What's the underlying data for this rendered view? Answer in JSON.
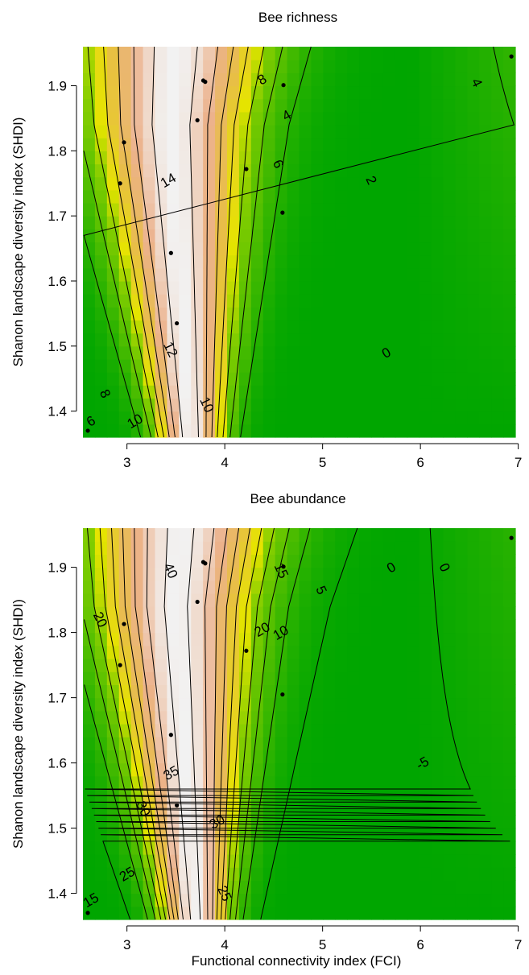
{
  "chart_data": [
    {
      "type": "heatmap",
      "title": "Bee richness",
      "xlabel": "",
      "ylabel": "Shanon landscape diversity index (SHDI)",
      "xlim": [
        2.55,
        6.97
      ],
      "ylim": [
        1.36,
        1.96
      ],
      "x_ticks": [
        "3",
        "4",
        "5",
        "6",
        "7"
      ],
      "x_tick_values": [
        3,
        4,
        5,
        6,
        7
      ],
      "y_ticks": [
        "1.4",
        "1.5",
        "1.6",
        "1.7",
        "1.8",
        "1.9"
      ],
      "y_tick_values": [
        1.4,
        1.5,
        1.6,
        1.7,
        1.8,
        1.9
      ],
      "surface": {
        "peak_x": 3.45,
        "peak_value": 14.8,
        "plateau_value": 0.5,
        "plateau_x": 5.8
      },
      "contour_levels": [
        "0",
        "2",
        "4",
        "6",
        "8",
        "10",
        "12",
        "14"
      ],
      "contour_labels": [
        {
          "text": "6",
          "x": 2.63,
          "y": 1.385
        },
        {
          "text": "8",
          "x": 2.78,
          "y": 1.427
        },
        {
          "text": "10",
          "x": 3.08,
          "y": 1.385
        },
        {
          "text": "12",
          "x": 3.45,
          "y": 1.495
        },
        {
          "text": "14",
          "x": 3.42,
          "y": 1.755
        },
        {
          "text": "10",
          "x": 3.82,
          "y": 1.41
        },
        {
          "text": "8",
          "x": 4.38,
          "y": 1.91
        },
        {
          "text": "6",
          "x": 4.55,
          "y": 1.78
        },
        {
          "text": "4",
          "x": 4.63,
          "y": 1.855
        },
        {
          "text": "2",
          "x": 5.5,
          "y": 1.755
        },
        {
          "text": "0",
          "x": 5.65,
          "y": 1.49
        },
        {
          "text": "4",
          "x": 6.58,
          "y": 1.905
        }
      ],
      "points": [
        {
          "x": 2.6,
          "y": 1.37
        },
        {
          "x": 2.93,
          "y": 1.75
        },
        {
          "x": 2.97,
          "y": 1.813
        },
        {
          "x": 3.45,
          "y": 1.643
        },
        {
          "x": 3.51,
          "y": 1.535
        },
        {
          "x": 3.72,
          "y": 1.847
        },
        {
          "x": 3.78,
          "y": 1.908
        },
        {
          "x": 3.8,
          "y": 1.906
        },
        {
          "x": 4.22,
          "y": 1.772
        },
        {
          "x": 4.59,
          "y": 1.705
        },
        {
          "x": 4.6,
          "y": 1.901
        },
        {
          "x": 6.93,
          "y": 1.945
        }
      ]
    },
    {
      "type": "heatmap",
      "title": "Bee abundance",
      "xlabel": "Functional connectivity index (FCI)",
      "ylabel": "Shanon landscape diversity index (SHDI)",
      "xlim": [
        2.55,
        6.97
      ],
      "ylim": [
        1.36,
        1.96
      ],
      "x_ticks": [
        "3",
        "4",
        "5",
        "6",
        "7"
      ],
      "x_tick_values": [
        3,
        4,
        5,
        6,
        7
      ],
      "y_ticks": [
        "1.4",
        "1.5",
        "1.6",
        "1.7",
        "1.8",
        "1.9"
      ],
      "y_tick_values": [
        1.4,
        1.5,
        1.6,
        1.7,
        1.8,
        1.9
      ],
      "surface": {
        "peak_x": 3.5,
        "peak_value": 41,
        "plateau_value": -6,
        "plateau_x": 5.9
      },
      "contour_levels": [
        "-5",
        "0",
        "5",
        "10",
        "15",
        "20",
        "25",
        "30",
        "35",
        "40"
      ],
      "contour_labels": [
        {
          "text": "15",
          "x": 2.63,
          "y": 1.39
        },
        {
          "text": "20",
          "x": 2.73,
          "y": 1.82
        },
        {
          "text": "25",
          "x": 3.0,
          "y": 1.43
        },
        {
          "text": "30",
          "x": 3.17,
          "y": 1.53
        },
        {
          "text": "35",
          "x": 3.45,
          "y": 1.585
        },
        {
          "text": "40",
          "x": 3.45,
          "y": 1.895
        },
        {
          "text": "30",
          "x": 3.92,
          "y": 1.51
        },
        {
          "text": "25",
          "x": 4.0,
          "y": 1.4
        },
        {
          "text": "20",
          "x": 4.38,
          "y": 1.805
        },
        {
          "text": "15",
          "x": 4.58,
          "y": 1.895
        },
        {
          "text": "10",
          "x": 4.57,
          "y": 1.8
        },
        {
          "text": "5",
          "x": 4.99,
          "y": 1.865
        },
        {
          "text": "0",
          "x": 5.7,
          "y": 1.9
        },
        {
          "text": "0",
          "x": 6.25,
          "y": 1.9
        },
        {
          "text": "-5",
          "x": 6.02,
          "y": 1.6
        }
      ],
      "points": [
        {
          "x": 2.6,
          "y": 1.37
        },
        {
          "x": 2.93,
          "y": 1.75
        },
        {
          "x": 2.97,
          "y": 1.813
        },
        {
          "x": 3.45,
          "y": 1.643
        },
        {
          "x": 3.51,
          "y": 1.535
        },
        {
          "x": 3.72,
          "y": 1.847
        },
        {
          "x": 3.78,
          "y": 1.908
        },
        {
          "x": 3.8,
          "y": 1.906
        },
        {
          "x": 4.22,
          "y": 1.772
        },
        {
          "x": 4.59,
          "y": 1.705
        },
        {
          "x": 4.6,
          "y": 1.901
        },
        {
          "x": 6.93,
          "y": 1.945
        }
      ]
    }
  ]
}
